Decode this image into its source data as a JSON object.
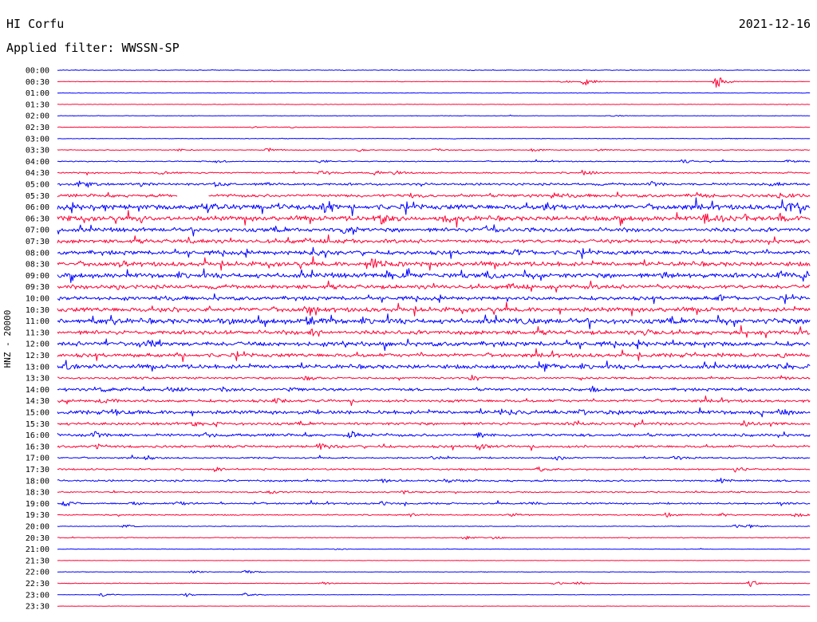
{
  "header": {
    "station": "HI Corfu",
    "date": "2021-12-16",
    "filter": "Applied filter: WWSSN-SP"
  },
  "chart_data": {
    "type": "line",
    "title": "HI Corfu",
    "subtitle": "Applied filter: WWSSN-SP",
    "ylabel": "HNZ - 20000",
    "colors": [
      "#0000ff",
      "#ff0033"
    ],
    "rows": [
      {
        "label": "00:00",
        "level": 0.4,
        "events": []
      },
      {
        "label": "00:30",
        "level": 0.3,
        "events": [
          [
            0.67,
            2.5
          ],
          [
            0.7,
            6
          ],
          [
            0.875,
            9.5
          ]
        ]
      },
      {
        "label": "01:00",
        "level": 0.3,
        "events": []
      },
      {
        "label": "01:30",
        "level": 0.3,
        "events": []
      },
      {
        "label": "02:00",
        "level": 0.3,
        "events": [
          [
            0.74,
            1.2
          ]
        ]
      },
      {
        "label": "02:30",
        "level": 0.4,
        "events": [
          [
            0.26,
            1.2
          ],
          [
            0.31,
            1.3
          ]
        ]
      },
      {
        "label": "03:00",
        "level": 0.4,
        "events": []
      },
      {
        "label": "03:30",
        "level": 0.5,
        "events": [
          [
            0.16,
            2
          ],
          [
            0.28,
            3
          ],
          [
            0.4,
            2
          ],
          [
            0.5,
            1.8
          ],
          [
            0.63,
            2.2
          ],
          [
            0.72,
            1.8
          ]
        ]
      },
      {
        "label": "04:00",
        "level": 0.6,
        "events": [
          [
            0.21,
            2.5
          ],
          [
            0.35,
            2.2
          ],
          [
            0.83,
            3.5
          ],
          [
            0.97,
            2.5
          ]
        ]
      },
      {
        "label": "04:30",
        "level": 0.9,
        "events": [
          [
            0.14,
            2.5
          ],
          [
            0.35,
            2.5
          ],
          [
            0.42,
            3.5
          ],
          [
            0.45,
            4
          ],
          [
            0.7,
            4
          ]
        ]
      },
      {
        "label": "05:00",
        "level": 1.4,
        "events": [
          [
            0.03,
            4
          ],
          [
            0.11,
            3
          ],
          [
            0.21,
            3
          ],
          [
            0.28,
            2.5
          ],
          [
            0.79,
            3
          ],
          [
            0.95,
            3
          ]
        ]
      },
      {
        "label": "05:30",
        "level": 1.8,
        "events": [
          [
            0.47,
            4
          ],
          [
            0.66,
            5
          ],
          [
            0.85,
            3.5
          ],
          [
            0.96,
            4
          ]
        ],
        "gap": [
          0.16,
          0.2
        ]
      },
      {
        "label": "06:00",
        "level": 3.0,
        "events": [
          [
            0.19,
            6
          ],
          [
            0.35,
            4
          ],
          [
            0.65,
            4
          ],
          [
            0.97,
            8
          ]
        ]
      },
      {
        "label": "06:30",
        "level": 2.8,
        "events": [
          [
            0.11,
            4
          ],
          [
            0.43,
            6
          ],
          [
            0.51,
            4
          ],
          [
            0.86,
            5
          ],
          [
            0.96,
            5
          ]
        ]
      },
      {
        "label": "07:00",
        "level": 2.4,
        "events": [
          [
            0.38,
            4
          ],
          [
            0.57,
            3.5
          ]
        ]
      },
      {
        "label": "07:30",
        "level": 2.2,
        "events": [
          [
            0.17,
            3
          ],
          [
            0.33,
            3
          ]
        ]
      },
      {
        "label": "08:00",
        "level": 2.4,
        "events": [
          [
            0.34,
            7
          ],
          [
            0.61,
            3.5
          ]
        ]
      },
      {
        "label": "08:30",
        "level": 2.6,
        "events": [
          [
            0.08,
            3
          ],
          [
            0.42,
            8
          ]
        ]
      },
      {
        "label": "09:00",
        "level": 2.8,
        "events": [
          [
            0.44,
            4
          ],
          [
            0.58,
            4
          ],
          [
            0.8,
            4
          ],
          [
            0.96,
            5
          ]
        ]
      },
      {
        "label": "09:30",
        "level": 2.4,
        "events": [
          [
            0.07,
            3
          ],
          [
            0.6,
            3.5
          ]
        ]
      },
      {
        "label": "10:00",
        "level": 2.2,
        "events": [
          [
            0.13,
            3
          ],
          [
            0.88,
            4
          ]
        ]
      },
      {
        "label": "10:30",
        "level": 2.6,
        "events": [
          [
            0.14,
            3
          ],
          [
            0.33,
            4
          ]
        ]
      },
      {
        "label": "11:00",
        "level": 3.0,
        "events": [
          [
            0.22,
            4
          ],
          [
            0.33,
            9
          ],
          [
            0.62,
            4
          ]
        ]
      },
      {
        "label": "11:30",
        "level": 2.4,
        "events": [
          [
            0.34,
            3.5
          ],
          [
            0.78,
            3.5
          ]
        ]
      },
      {
        "label": "12:00",
        "level": 2.6,
        "events": [
          [
            0.12,
            3.5
          ],
          [
            0.38,
            3
          ]
        ]
      },
      {
        "label": "12:30",
        "level": 2.2,
        "events": [
          [
            0.96,
            4
          ]
        ]
      },
      {
        "label": "13:00",
        "level": 2.4,
        "events": [
          [
            0.01,
            3.5
          ],
          [
            0.65,
            4
          ],
          [
            0.96,
            3.5
          ]
        ]
      },
      {
        "label": "13:30",
        "level": 1.2,
        "events": [
          [
            0.33,
            3.5
          ],
          [
            0.55,
            2.5
          ],
          [
            0.96,
            2.5
          ]
        ]
      },
      {
        "label": "14:00",
        "level": 1.6,
        "events": [
          [
            0.06,
            3.5
          ],
          [
            0.15,
            4
          ],
          [
            0.22,
            4
          ],
          [
            0.31,
            3.5
          ],
          [
            0.71,
            3.5
          ],
          [
            0.91,
            3.5
          ]
        ]
      },
      {
        "label": "14:30",
        "level": 1.6,
        "events": [
          [
            0.06,
            3
          ],
          [
            0.29,
            3
          ]
        ]
      },
      {
        "label": "15:00",
        "level": 2.2,
        "events": [
          [
            0.08,
            3
          ],
          [
            0.59,
            4
          ],
          [
            0.69,
            4
          ],
          [
            0.96,
            3.5
          ]
        ]
      },
      {
        "label": "15:30",
        "level": 1.6,
        "events": [
          [
            0.18,
            3
          ],
          [
            0.69,
            3
          ],
          [
            0.91,
            3.5
          ]
        ]
      },
      {
        "label": "16:00",
        "level": 1.6,
        "events": [
          [
            0.05,
            4
          ],
          [
            0.2,
            3
          ],
          [
            0.39,
            4
          ],
          [
            0.56,
            4
          ]
        ]
      },
      {
        "label": "16:30",
        "level": 1.4,
        "events": [
          [
            0.05,
            3
          ],
          [
            0.35,
            4
          ],
          [
            0.56,
            5
          ]
        ]
      },
      {
        "label": "17:00",
        "level": 0.9,
        "events": [
          [
            0.12,
            3.5
          ],
          [
            0.5,
            3.5
          ],
          [
            0.66,
            3.5
          ],
          [
            0.82,
            2.5
          ]
        ]
      },
      {
        "label": "17:30",
        "level": 1.0,
        "events": [
          [
            0.21,
            2.5
          ],
          [
            0.64,
            2.5
          ],
          [
            0.9,
            3
          ]
        ]
      },
      {
        "label": "18:00",
        "level": 1.1,
        "events": [
          [
            0.43,
            3
          ],
          [
            0.52,
            3
          ],
          [
            0.88,
            3
          ]
        ]
      },
      {
        "label": "18:30",
        "level": 0.8,
        "events": [
          [
            0.28,
            2.5
          ],
          [
            0.46,
            2.5
          ]
        ]
      },
      {
        "label": "19:00",
        "level": 1.0,
        "events": [
          [
            0.01,
            4
          ],
          [
            0.1,
            3
          ],
          [
            0.16,
            3.5
          ],
          [
            0.43,
            3
          ],
          [
            0.63,
            2.5
          ],
          [
            0.96,
            2.5
          ]
        ]
      },
      {
        "label": "19:30",
        "level": 0.7,
        "events": [
          [
            0.47,
            2.5
          ],
          [
            0.6,
            3
          ],
          [
            0.81,
            3.5
          ],
          [
            0.88,
            3
          ],
          [
            0.98,
            3.5
          ]
        ]
      },
      {
        "label": "20:00",
        "level": 0.4,
        "events": [
          [
            0.09,
            2.5
          ],
          [
            0.9,
            3
          ],
          [
            0.92,
            2.5
          ]
        ]
      },
      {
        "label": "20:30",
        "level": 0.5,
        "events": [
          [
            0.54,
            2.5
          ],
          [
            0.58,
            2.5
          ]
        ]
      },
      {
        "label": "21:00",
        "level": 0.3,
        "events": [
          [
            0.37,
            1.2
          ]
        ]
      },
      {
        "label": "21:30",
        "level": 0.2,
        "events": []
      },
      {
        "label": "22:00",
        "level": 0.3,
        "events": [
          [
            0.18,
            3
          ],
          [
            0.25,
            3
          ]
        ]
      },
      {
        "label": "22:30",
        "level": 0.4,
        "events": [
          [
            0.35,
            2.5
          ],
          [
            0.66,
            2.5
          ],
          [
            0.69,
            3
          ],
          [
            0.92,
            4
          ]
        ]
      },
      {
        "label": "23:00",
        "level": 0.3,
        "events": [
          [
            0.06,
            2.5
          ],
          [
            0.17,
            3.5
          ],
          [
            0.25,
            2.5
          ]
        ]
      },
      {
        "label": "23:30",
        "level": 0.2,
        "events": []
      }
    ]
  }
}
